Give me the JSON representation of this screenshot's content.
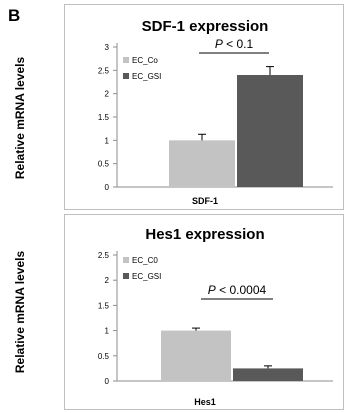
{
  "panel_label": "B",
  "chart_data": [
    {
      "type": "bar",
      "title": "SDF-1 expression",
      "ylabel": "Relative mRNA levels",
      "xlabel": "SDF-1",
      "ylim": [
        0,
        3
      ],
      "yticks": [
        "0",
        "0.5",
        "1",
        "1.5",
        "2",
        "2.5",
        "3"
      ],
      "grid": false,
      "legend_position": "top-left",
      "series": [
        {
          "name": "EC_Co",
          "value": 1.0,
          "error": 0.13,
          "color": "#c3c3c3"
        },
        {
          "name": "EC_GSI",
          "value": 2.4,
          "error": 0.18,
          "color": "#595959"
        }
      ],
      "annotation": {
        "italic": "P",
        "rest": " < 0.1"
      }
    },
    {
      "type": "bar",
      "title": "Hes1 expression",
      "ylabel": "Relative mRNA levels",
      "xlabel": "Hes1",
      "ylim": [
        0,
        2.5
      ],
      "yticks": [
        "0",
        "0.5",
        "1",
        "1.5",
        "2",
        "2.5"
      ],
      "grid": false,
      "legend_position": "top-left",
      "series": [
        {
          "name": "EC_C0",
          "value": 1.0,
          "error": 0.05,
          "color": "#c3c3c3"
        },
        {
          "name": "EC_GSI",
          "value": 0.25,
          "error": 0.05,
          "color": "#595959"
        }
      ],
      "annotation": {
        "italic": "P",
        "rest": " < 0.0004"
      }
    }
  ]
}
